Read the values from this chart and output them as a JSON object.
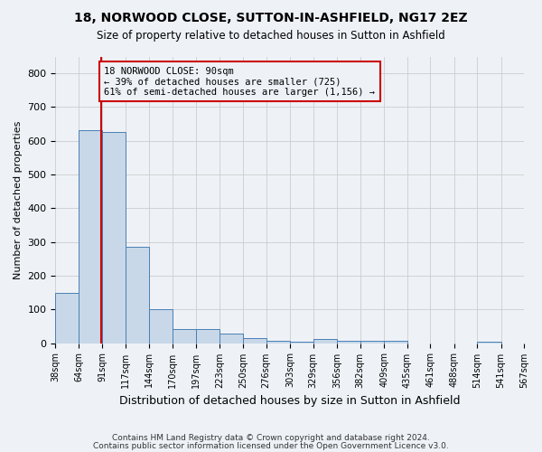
{
  "title_line1": "18, NORWOOD CLOSE, SUTTON-IN-ASHFIELD, NG17 2EZ",
  "title_line2": "Size of property relative to detached houses in Sutton in Ashfield",
  "xlabel": "Distribution of detached houses by size in Sutton in Ashfield",
  "ylabel": "Number of detached properties",
  "bar_edges": [
    38,
    64,
    91,
    117,
    144,
    170,
    197,
    223,
    250,
    276,
    303,
    329,
    356,
    382,
    409,
    435,
    461,
    488,
    514,
    541,
    567
  ],
  "bar_heights": [
    148,
    632,
    625,
    285,
    100,
    42,
    42,
    28,
    14,
    6,
    5,
    12,
    7,
    7,
    8,
    0,
    0,
    0,
    5,
    0
  ],
  "bar_color": "#c8d8e8",
  "bar_edge_color": "#4a7fb5",
  "grid_color": "#cccccc",
  "subject_value": 90,
  "subject_line_color": "#cc0000",
  "annotation_box_color": "#cc0000",
  "annotation_text": "18 NORWOOD CLOSE: 90sqm\n← 39% of detached houses are smaller (725)\n61% of semi-detached houses are larger (1,156) →",
  "ylim": [
    0,
    850
  ],
  "yticks": [
    0,
    100,
    200,
    300,
    400,
    500,
    600,
    700,
    800
  ],
  "footnote1": "Contains HM Land Registry data © Crown copyright and database right 2024.",
  "footnote2": "Contains public sector information licensed under the Open Government Licence v3.0.",
  "background_color": "#eef2f7"
}
